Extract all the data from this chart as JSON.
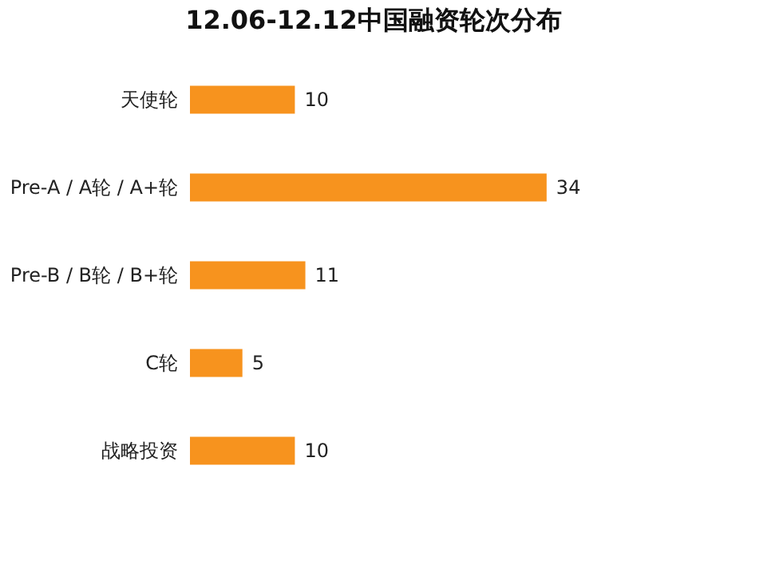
{
  "chart_data": {
    "type": "bar",
    "orientation": "horizontal",
    "title": "12.06-12.12中国融资轮次分布",
    "categories": [
      "天使轮",
      "Pre-A / A轮 / A+轮",
      "Pre-B / B轮 / B+轮",
      "C轮",
      "战略投资"
    ],
    "values": [
      10,
      34,
      11,
      5,
      10
    ],
    "color": "#f7931e",
    "data_labels": true,
    "grid": false
  }
}
